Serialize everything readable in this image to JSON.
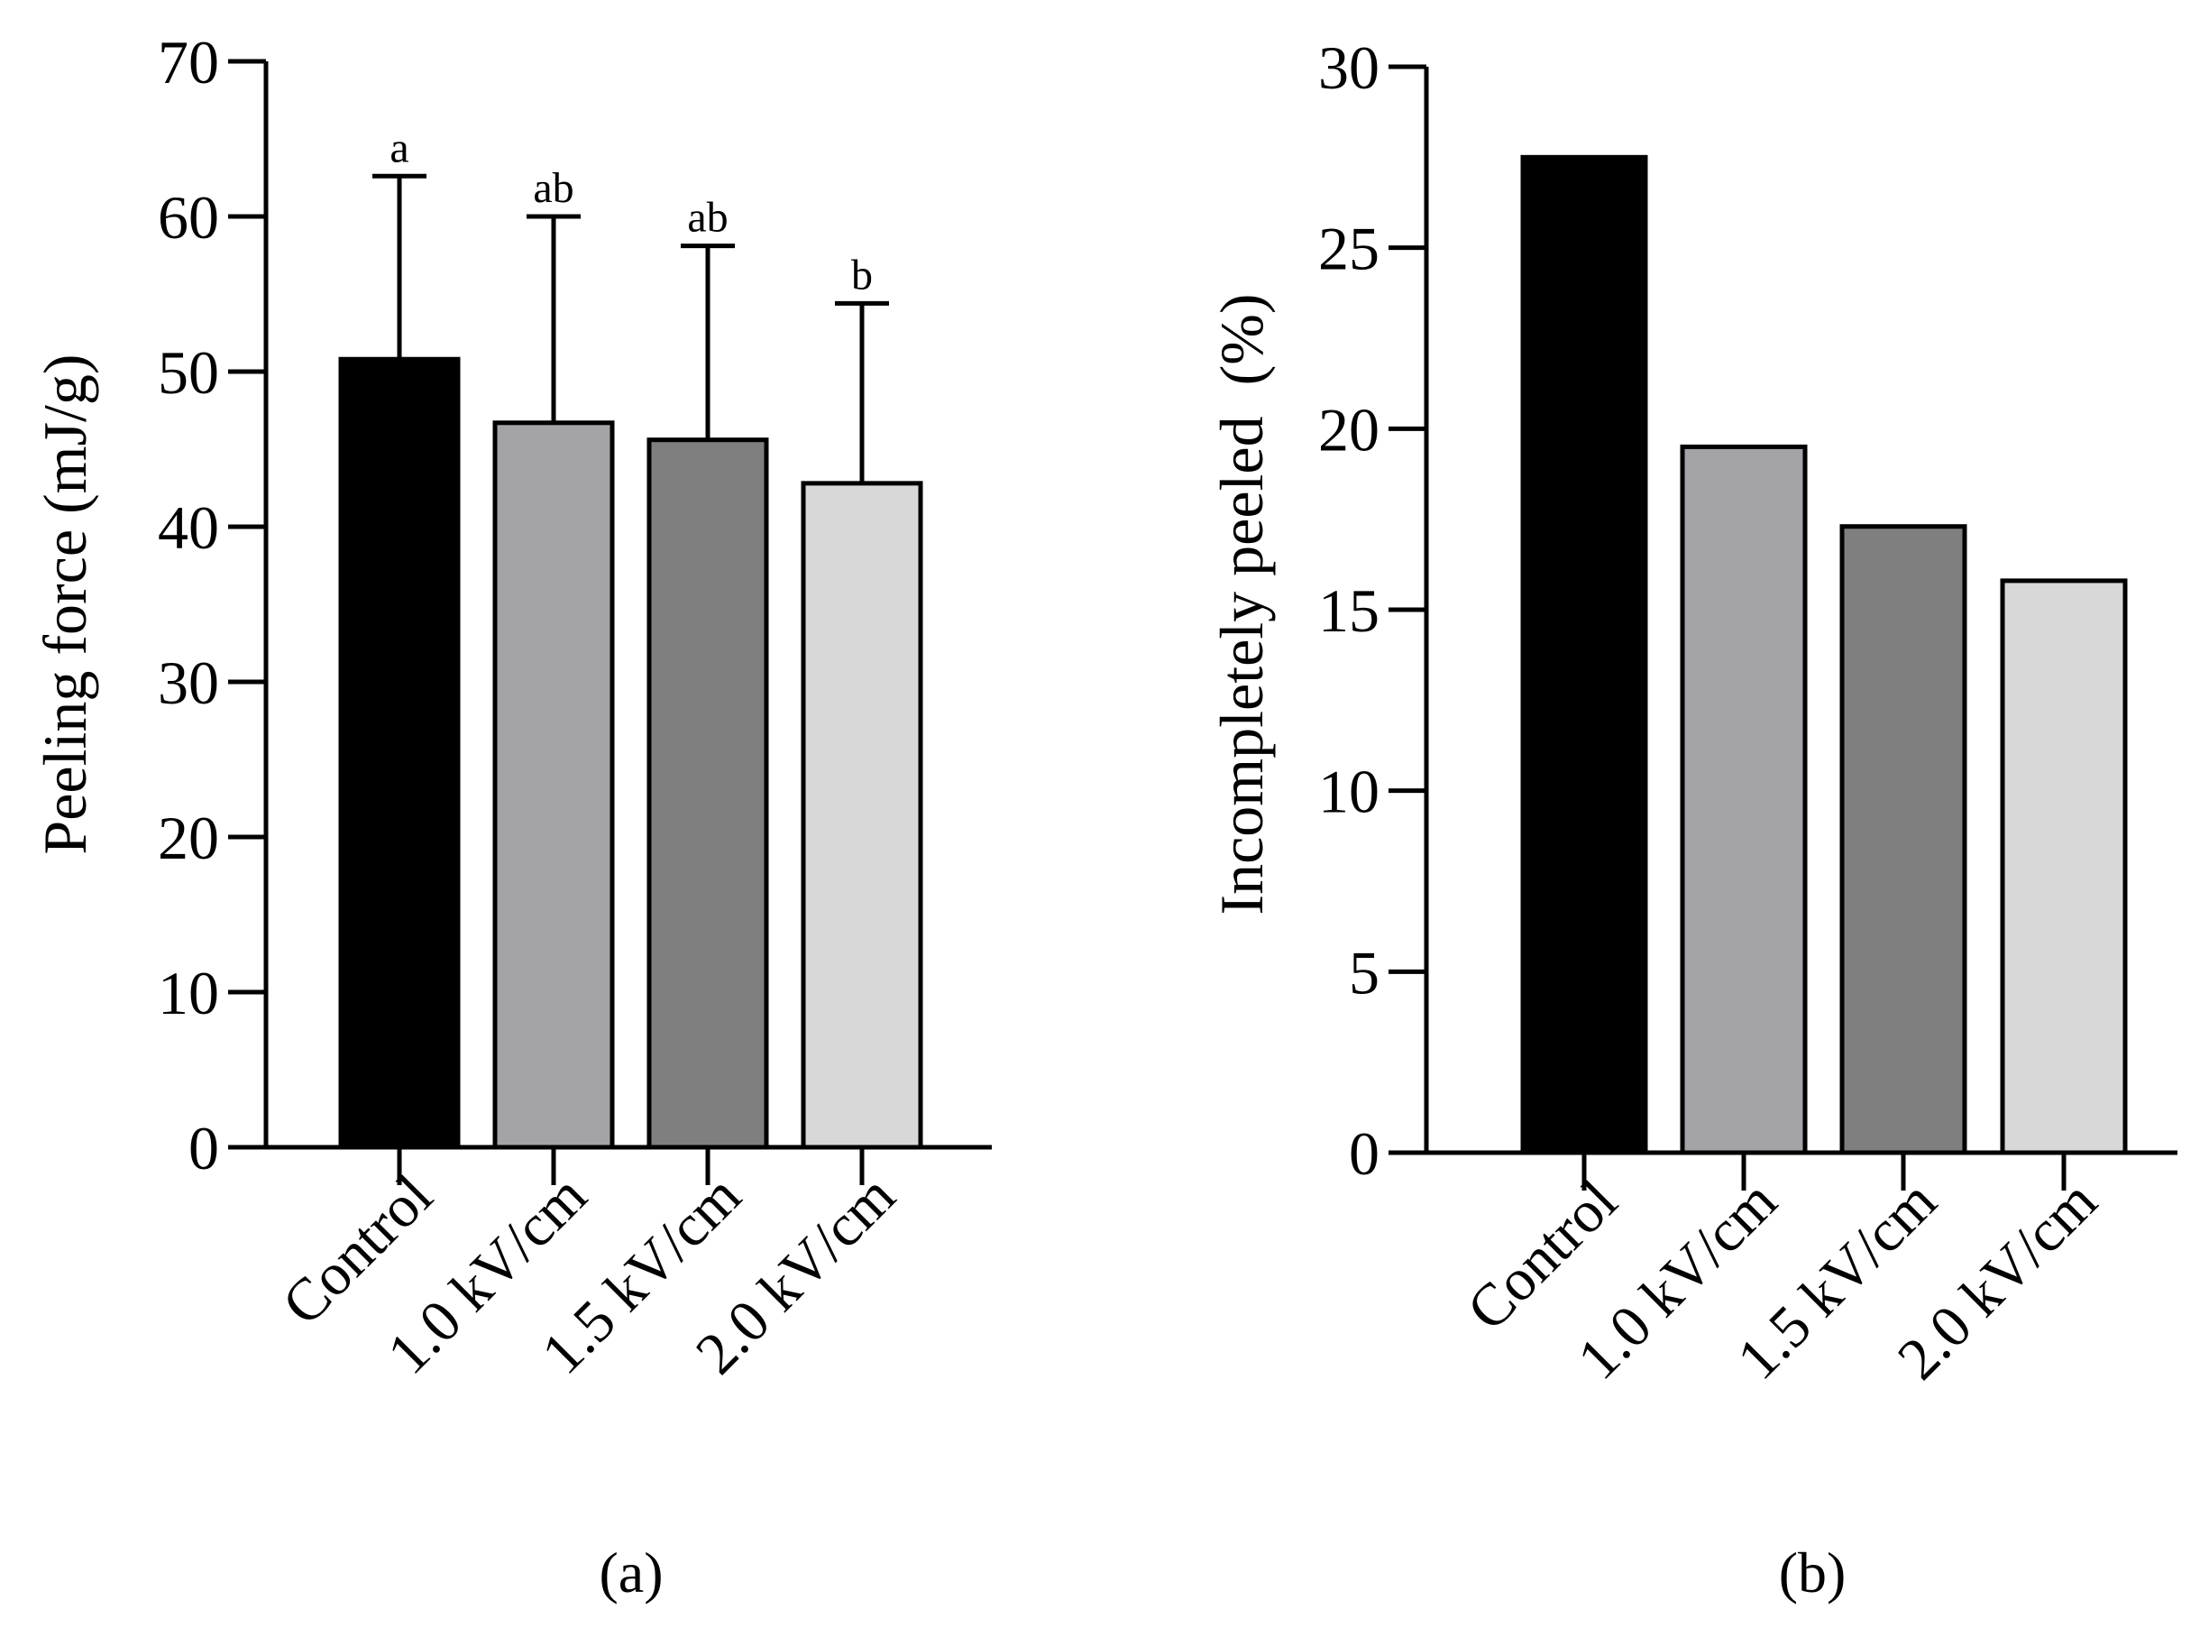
{
  "chart_data": [
    {
      "type": "bar",
      "panel": "(a)",
      "title": "",
      "xlabel": "",
      "ylabel": "Peeling force (mJ/g)",
      "ylim": [
        0,
        70
      ],
      "yticks": [
        "0",
        "10",
        "20",
        "30",
        "40",
        "50",
        "60",
        "70"
      ],
      "categories": [
        "Control",
        "1.0 kV/cm",
        "1.5 kV/cm",
        "2.0 kV/cm"
      ],
      "values": [
        50.8,
        46.7,
        45.6,
        42.8
      ],
      "errors": [
        11.8,
        13.3,
        12.5,
        11.6
      ],
      "significance": [
        "a",
        "ab",
        "ab",
        "b"
      ],
      "colors": [
        "#000000",
        "#a3a3a8",
        "#7f7f7f",
        "#d8d8d8"
      ]
    },
    {
      "type": "bar",
      "panel": "(b)",
      "title": "",
      "xlabel": "",
      "ylabel": "Incompletely peeled  (%)",
      "ylim": [
        0,
        30
      ],
      "yticks": [
        "0",
        "5",
        "10",
        "15",
        "20",
        "25",
        "30"
      ],
      "categories": [
        "Control",
        "1.0 kV/cm",
        "1.5 kV/cm",
        "2.0 kV/cm"
      ],
      "values": [
        27.5,
        19.5,
        17.3,
        15.8
      ],
      "colors": [
        "#000000",
        "#a3a3a8",
        "#7f7f7f",
        "#d8d8d8"
      ]
    }
  ]
}
